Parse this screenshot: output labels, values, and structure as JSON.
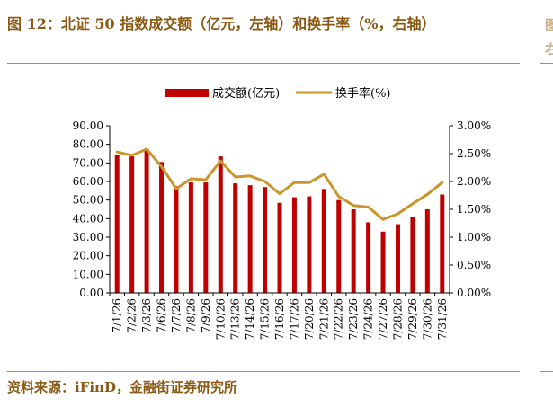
{
  "header": {
    "title": "图 12：北证 50 指数成交额（亿元，左轴）和换手率（%，右轴）"
  },
  "footer": {
    "source": "资料来源：iFinD，金融街证券研究所"
  },
  "colors": {
    "bar": "#c00000",
    "line": "#c8962c",
    "accent_text": "#8a5a14",
    "rule": "#b48a4a"
  },
  "chart_data": {
    "type": "bar",
    "categories": [
      "7/1/26",
      "7/2/26",
      "7/3/26",
      "7/6/26",
      "7/7/26",
      "7/8/26",
      "7/9/26",
      "7/10/26",
      "7/13/26",
      "7/14/26",
      "7/15/26",
      "7/16/26",
      "7/17/26",
      "7/20/26",
      "7/21/26",
      "7/22/26",
      "7/23/26",
      "7/24/26",
      "7/27/26",
      "7/28/26",
      "7/29/26",
      "7/30/26",
      "7/31/26"
    ],
    "series": [
      {
        "name": "成交额(亿元)",
        "type": "bar",
        "axis": "left",
        "values": [
          74.5,
          73.5,
          77.5,
          70.5,
          57.5,
          59.5,
          59.5,
          73.5,
          59.0,
          58.0,
          57.0,
          48.5,
          51.5,
          52.0,
          56.0,
          50.0,
          45.0,
          38.0,
          33.0,
          37.0,
          41.0,
          45.0,
          53.0
        ]
      },
      {
        "name": "换手率(%)",
        "type": "line",
        "axis": "right",
        "values": [
          2.53,
          2.47,
          2.58,
          2.27,
          1.87,
          2.05,
          2.03,
          2.37,
          2.08,
          2.1,
          2.0,
          1.78,
          1.98,
          1.98,
          2.13,
          1.73,
          1.57,
          1.54,
          1.32,
          1.42,
          1.6,
          1.77,
          1.98
        ]
      }
    ],
    "yleft": {
      "ylim": [
        0,
        90
      ],
      "ticks": [
        "0.00",
        "10.00",
        "20.00",
        "30.00",
        "40.00",
        "50.00",
        "60.00",
        "70.00",
        "80.00",
        "90.00"
      ]
    },
    "yright": {
      "ylim": [
        0,
        3
      ],
      "ticks": [
        "0.00%",
        "0.50%",
        "1.00%",
        "1.50%",
        "2.00%",
        "2.50%",
        "3.00%"
      ]
    },
    "legend": "top-center",
    "grid": false
  }
}
